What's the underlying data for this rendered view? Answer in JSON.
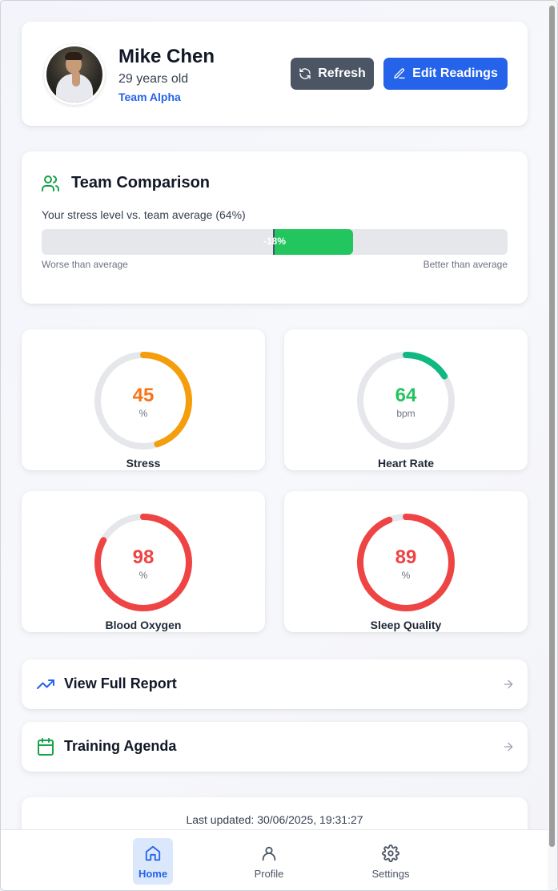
{
  "profile": {
    "name": "Mike Chen",
    "age": "29 years old",
    "team": "Team Alpha",
    "refresh_label": "Refresh",
    "edit_label": "Edit Readings"
  },
  "team_comparison": {
    "title": "Team Comparison",
    "subtitle": "Your stress level vs. team average (64%)",
    "difference_label": "-18%",
    "difference_value": -18,
    "left_caption": "Worse than average",
    "right_caption": "Better than average"
  },
  "metrics": [
    {
      "label": "Stress",
      "value": "45",
      "unit": "%",
      "percent": 45,
      "color": "#f59e0b",
      "value_color": "#f97316"
    },
    {
      "label": "Heart Rate",
      "value": "64",
      "unit": "bpm",
      "percent": 16,
      "color": "#10b981",
      "value_color": "#22c55e"
    },
    {
      "label": "Blood Oxygen",
      "value": "98",
      "unit": "%",
      "percent": 83,
      "color": "#ef4444",
      "value_color": "#ef4444"
    },
    {
      "label": "Sleep Quality",
      "value": "89",
      "unit": "%",
      "percent": 94,
      "color": "#ef4444",
      "value_color": "#ef4444"
    }
  ],
  "links": {
    "report": "View Full Report",
    "agenda": "Training Agenda"
  },
  "footer": {
    "last_updated": "Last updated: 30/06/2025, 19:31:27"
  },
  "nav": {
    "home": "Home",
    "profile": "Profile",
    "settings": "Settings"
  },
  "colors": {
    "primary": "#2563eb",
    "secondary": "#4b5563",
    "success": "#22c55e",
    "track": "#e5e7eb"
  }
}
